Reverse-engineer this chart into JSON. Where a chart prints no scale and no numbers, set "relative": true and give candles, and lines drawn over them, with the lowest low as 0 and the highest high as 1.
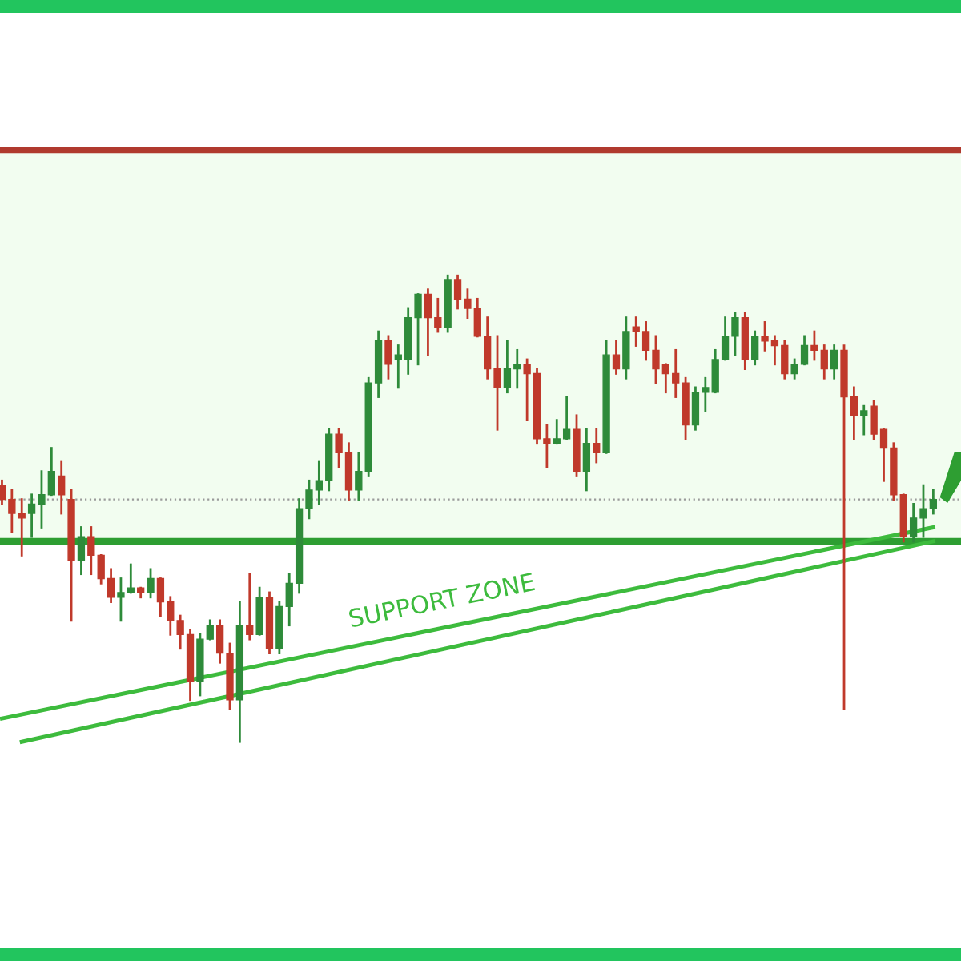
{
  "chart_data": {
    "type": "candlestick",
    "relative": true,
    "categories": [
      null,
      null,
      null,
      null,
      null,
      null,
      null,
      null,
      null,
      null,
      null,
      null,
      null,
      null,
      null,
      null,
      null,
      null,
      null,
      null,
      null,
      null,
      null,
      null,
      null,
      null,
      null,
      null,
      null,
      null,
      null,
      null,
      null,
      null,
      null,
      null,
      null,
      null,
      null,
      null,
      null,
      null,
      null,
      null,
      null,
      null,
      null,
      null,
      null,
      null,
      null,
      null,
      null,
      null,
      null,
      null,
      null,
      null,
      null,
      null,
      null,
      null,
      null,
      null,
      null,
      null,
      null,
      null,
      null,
      null,
      null,
      null,
      null,
      null,
      null,
      null,
      null,
      null,
      null,
      null,
      null,
      null,
      null,
      null,
      null,
      null,
      null,
      null,
      null,
      null,
      null,
      null,
      null,
      null,
      null
    ],
    "ohlc": [
      [
        0.55,
        0.56,
        0.51,
        0.52
      ],
      [
        0.52,
        0.54,
        0.45,
        0.49
      ],
      [
        0.49,
        0.52,
        0.4,
        0.48
      ],
      [
        0.49,
        0.53,
        0.44,
        0.51
      ],
      [
        0.51,
        0.58,
        0.46,
        0.53
      ],
      [
        0.53,
        0.63,
        0.53,
        0.58
      ],
      [
        0.57,
        0.6,
        0.49,
        0.53
      ],
      [
        0.52,
        0.54,
        0.26,
        0.39
      ],
      [
        0.39,
        0.46,
        0.36,
        0.44
      ],
      [
        0.44,
        0.46,
        0.36,
        0.4
      ],
      [
        0.4,
        0.4,
        0.34,
        0.35
      ],
      [
        0.35,
        0.37,
        0.3,
        0.31
      ],
      [
        0.31,
        0.35,
        0.26,
        0.32
      ],
      [
        0.32,
        0.38,
        0.32,
        0.33
      ],
      [
        0.33,
        0.33,
        0.31,
        0.32
      ],
      [
        0.32,
        0.37,
        0.31,
        0.35
      ],
      [
        0.35,
        0.35,
        0.27,
        0.3
      ],
      [
        0.3,
        0.31,
        0.23,
        0.26
      ],
      [
        0.26,
        0.27,
        0.2,
        0.23
      ],
      [
        0.23,
        0.24,
        0.09,
        0.13
      ],
      [
        0.13,
        0.23,
        0.1,
        0.22
      ],
      [
        0.22,
        0.26,
        0.22,
        0.25
      ],
      [
        0.25,
        0.26,
        0.17,
        0.19
      ],
      [
        0.19,
        0.21,
        0.07,
        0.09
      ],
      [
        0.09,
        0.3,
        0.0,
        0.25
      ],
      [
        0.25,
        0.36,
        0.22,
        0.23
      ],
      [
        0.23,
        0.33,
        0.23,
        0.31
      ],
      [
        0.31,
        0.32,
        0.19,
        0.2
      ],
      [
        0.2,
        0.3,
        0.19,
        0.29
      ],
      [
        0.29,
        0.36,
        0.25,
        0.34
      ],
      [
        0.34,
        0.52,
        0.32,
        0.5
      ],
      [
        0.5,
        0.56,
        0.48,
        0.54
      ],
      [
        0.54,
        0.6,
        0.51,
        0.56
      ],
      [
        0.56,
        0.67,
        0.54,
        0.66
      ],
      [
        0.66,
        0.67,
        0.59,
        0.62
      ],
      [
        0.62,
        0.64,
        0.52,
        0.54
      ],
      [
        0.54,
        0.62,
        0.52,
        0.58
      ],
      [
        0.58,
        0.78,
        0.57,
        0.77
      ],
      [
        0.77,
        0.88,
        0.74,
        0.86
      ],
      [
        0.86,
        0.87,
        0.78,
        0.81
      ],
      [
        0.82,
        0.85,
        0.76,
        0.83
      ],
      [
        0.82,
        0.93,
        0.79,
        0.91
      ],
      [
        0.91,
        0.96,
        0.81,
        0.96
      ],
      [
        0.96,
        0.97,
        0.83,
        0.91
      ],
      [
        0.91,
        0.95,
        0.88,
        0.89
      ],
      [
        0.89,
        1.0,
        0.88,
        0.99
      ],
      [
        0.99,
        1.0,
        0.93,
        0.95
      ],
      [
        0.95,
        0.97,
        0.91,
        0.93
      ],
      [
        0.93,
        0.95,
        0.87,
        0.87
      ],
      [
        0.87,
        0.91,
        0.78,
        0.8
      ],
      [
        0.8,
        0.87,
        0.67,
        0.76
      ],
      [
        0.76,
        0.86,
        0.75,
        0.8
      ],
      [
        0.8,
        0.84,
        0.76,
        0.81
      ],
      [
        0.81,
        0.82,
        0.69,
        0.79
      ],
      [
        0.79,
        0.8,
        0.64,
        0.65
      ],
      [
        0.65,
        0.68,
        0.59,
        0.64
      ],
      [
        0.64,
        0.69,
        0.64,
        0.65
      ],
      [
        0.65,
        0.74,
        0.65,
        0.67
      ],
      [
        0.67,
        0.7,
        0.57,
        0.58
      ],
      [
        0.58,
        0.67,
        0.54,
        0.64
      ],
      [
        0.64,
        0.67,
        0.6,
        0.62
      ],
      [
        0.62,
        0.86,
        0.62,
        0.83
      ],
      [
        0.83,
        0.86,
        0.79,
        0.8
      ],
      [
        0.8,
        0.91,
        0.78,
        0.88
      ],
      [
        0.89,
        0.91,
        0.85,
        0.88
      ],
      [
        0.88,
        0.9,
        0.82,
        0.84
      ],
      [
        0.84,
        0.87,
        0.77,
        0.8
      ],
      [
        0.81,
        0.81,
        0.75,
        0.79
      ],
      [
        0.79,
        0.84,
        0.74,
        0.77
      ],
      [
        0.77,
        0.78,
        0.65,
        0.68
      ],
      [
        0.68,
        0.76,
        0.67,
        0.75
      ],
      [
        0.75,
        0.78,
        0.71,
        0.76
      ],
      [
        0.75,
        0.84,
        0.75,
        0.82
      ],
      [
        0.82,
        0.91,
        0.82,
        0.87
      ],
      [
        0.87,
        0.92,
        0.83,
        0.91
      ],
      [
        0.91,
        0.92,
        0.8,
        0.82
      ],
      [
        0.82,
        0.88,
        0.81,
        0.87
      ],
      [
        0.87,
        0.9,
        0.84,
        0.86
      ],
      [
        0.86,
        0.87,
        0.81,
        0.85
      ],
      [
        0.85,
        0.86,
        0.78,
        0.79
      ],
      [
        0.79,
        0.82,
        0.78,
        0.81
      ],
      [
        0.81,
        0.87,
        0.81,
        0.85
      ],
      [
        0.85,
        0.88,
        0.82,
        0.84
      ],
      [
        0.84,
        0.85,
        0.78,
        0.8
      ],
      [
        0.8,
        0.85,
        0.78,
        0.84
      ],
      [
        0.84,
        0.85,
        0.07,
        0.74
      ],
      [
        0.74,
        0.76,
        0.65,
        0.7
      ],
      [
        0.7,
        0.72,
        0.66,
        0.71
      ],
      [
        0.72,
        0.73,
        0.65,
        0.66
      ],
      [
        0.67,
        0.67,
        0.56,
        0.63
      ],
      [
        0.63,
        0.64,
        0.52,
        0.53
      ],
      [
        0.53,
        0.53,
        0.43,
        0.44
      ],
      [
        0.44,
        0.51,
        0.43,
        0.48
      ],
      [
        0.48,
        0.55,
        0.44,
        0.5
      ],
      [
        0.5,
        0.54,
        0.49,
        0.52
      ]
    ],
    "series": [
      {
        "type": "line",
        "color": "#3dbb3d",
        "values": [
          0.05,
          null,
          null,
          null,
          null,
          null,
          null,
          null,
          null,
          null,
          null,
          null,
          null,
          null,
          null,
          null,
          null,
          null,
          null,
          null,
          null,
          null,
          null,
          null,
          null,
          null,
          null,
          null,
          null,
          null,
          null,
          null,
          null,
          null,
          null,
          null,
          null,
          null,
          null,
          null,
          null,
          null,
          null,
          null,
          null,
          null,
          null,
          null,
          null,
          null,
          null,
          null,
          null,
          null,
          null,
          null,
          null,
          null,
          null,
          null,
          null,
          null,
          null,
          null,
          null,
          null,
          null,
          null,
          null,
          null,
          null,
          null,
          null,
          null,
          null,
          null,
          null,
          null,
          null,
          null,
          null,
          null,
          null,
          null,
          null,
          null,
          null,
          null,
          null,
          null,
          null,
          null,
          null,
          null,
          0.46
        ]
      },
      {
        "type": "line",
        "color": "#3dbb3d",
        "values": [
          null,
          null,
          0.0,
          null,
          null,
          null,
          null,
          null,
          null,
          null,
          null,
          null,
          null,
          null,
          null,
          null,
          null,
          null,
          null,
          null,
          null,
          null,
          null,
          null,
          null,
          null,
          null,
          null,
          null,
          null,
          null,
          null,
          null,
          null,
          null,
          null,
          null,
          null,
          null,
          null,
          null,
          null,
          null,
          null,
          null,
          null,
          null,
          null,
          null,
          null,
          null,
          null,
          null,
          null,
          null,
          null,
          null,
          null,
          null,
          null,
          null,
          null,
          null,
          null,
          null,
          null,
          null,
          null,
          null,
          null,
          null,
          null,
          null,
          null,
          null,
          null,
          null,
          null,
          null,
          null,
          null,
          null,
          null,
          null,
          null,
          null,
          null,
          null,
          null,
          null,
          null,
          null,
          null,
          null,
          0.43
        ]
      }
    ],
    "ref_lines": [
      {
        "axis": "y",
        "value": 1.27,
        "color": "#b03a2e"
      },
      {
        "axis": "y",
        "value": 0.43,
        "color": "#2e9e32"
      },
      {
        "axis": "y",
        "value": 0.52,
        "color": "#9a9a9a",
        "line_style": "dotted"
      }
    ],
    "bands": [
      {
        "axis": "y",
        "from": 0.43,
        "to": 1.27,
        "color": "#f2fdf0"
      }
    ],
    "annotations": [
      "SUPPORT ZONE"
    ]
  }
}
